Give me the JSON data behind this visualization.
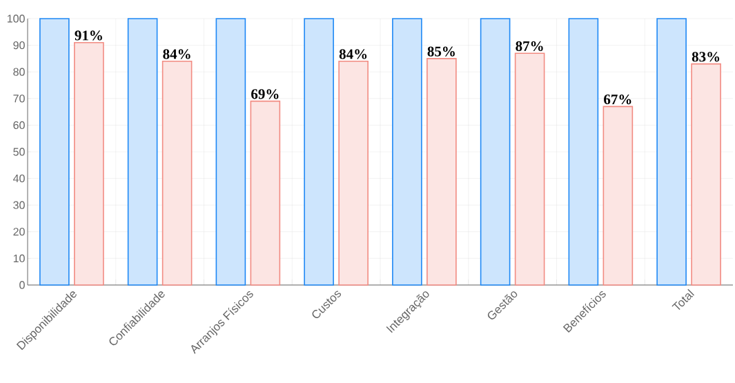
{
  "chart_data": {
    "type": "bar",
    "categories": [
      "Disponibilidade",
      "Confiabilidade",
      "Arranjos Físicos",
      "Custos",
      "Integração",
      "Gestão",
      "Benefícios",
      "Total"
    ],
    "series": [
      {
        "color": "#1e88f5",
        "values": [
          100,
          100,
          100,
          100,
          100,
          100,
          100,
          100
        ]
      },
      {
        "color": "#f28b82",
        "values": [
          91,
          84,
          69,
          84,
          85,
          87,
          67,
          83
        ],
        "value_labels": [
          "91%",
          "84%",
          "69%",
          "84%",
          "85%",
          "87%",
          "67%",
          "83%"
        ]
      }
    ],
    "ylim": [
      0,
      100
    ],
    "yticks": [
      0,
      10,
      20,
      30,
      40,
      50,
      60,
      70,
      80,
      90,
      100
    ],
    "grid": true
  }
}
